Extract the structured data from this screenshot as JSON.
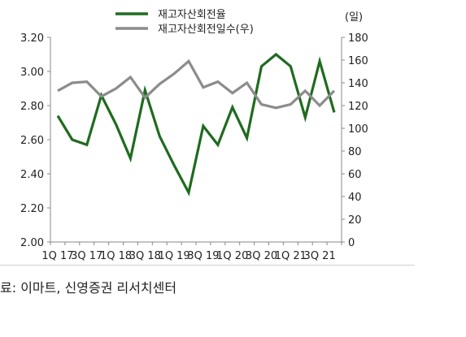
{
  "chart_data": {
    "type": "line",
    "legend_placement": "top-center",
    "y2_unit_label": "(일)",
    "x": [
      "1Q 17",
      "2Q 17",
      "3Q 17",
      "4Q 17",
      "1Q 18",
      "2Q 18",
      "3Q 18",
      "4Q 18",
      "1Q 19",
      "2Q 19",
      "3Q 19",
      "4Q 19",
      "1Q 20",
      "2Q 20",
      "3Q 20",
      "4Q 20",
      "1Q 21",
      "2Q 21",
      "3Q 21",
      "4Q 21"
    ],
    "x_tick_labels": [
      "1Q 17",
      "3Q 17",
      "1Q 18",
      "3Q 18",
      "1Q 19",
      "3Q 19",
      "1Q 20",
      "3Q 20",
      "1Q 21",
      "3Q 21"
    ],
    "y_left": {
      "ylim": [
        2.0,
        3.2
      ],
      "ticks": [
        "2.00",
        "2.20",
        "2.40",
        "2.60",
        "2.80",
        "3.00",
        "3.20"
      ]
    },
    "y_right": {
      "ylim": [
        0,
        180
      ],
      "ticks": [
        "0",
        "20",
        "40",
        "60",
        "80",
        "100",
        "120",
        "140",
        "160",
        "180"
      ]
    },
    "grid": false,
    "series": [
      {
        "name": "재고자산회전율",
        "axis": "left",
        "color": "#1f6b1f",
        "values": [
          2.74,
          2.6,
          2.57,
          2.86,
          2.69,
          2.49,
          2.89,
          2.62,
          2.45,
          2.29,
          2.68,
          2.57,
          2.79,
          2.61,
          3.03,
          3.1,
          3.03,
          2.73,
          3.06,
          2.76
        ]
      },
      {
        "name": "재고자산회전일수(우)",
        "axis": "right",
        "color": "#8c8c8c",
        "values": [
          133,
          140,
          141,
          128,
          135,
          145,
          127,
          139,
          148,
          159,
          136,
          141,
          131,
          140,
          121,
          118,
          121,
          133,
          120,
          133
        ]
      }
    ]
  },
  "source_note": "료: 이마트, 신영증권 리서치센터"
}
